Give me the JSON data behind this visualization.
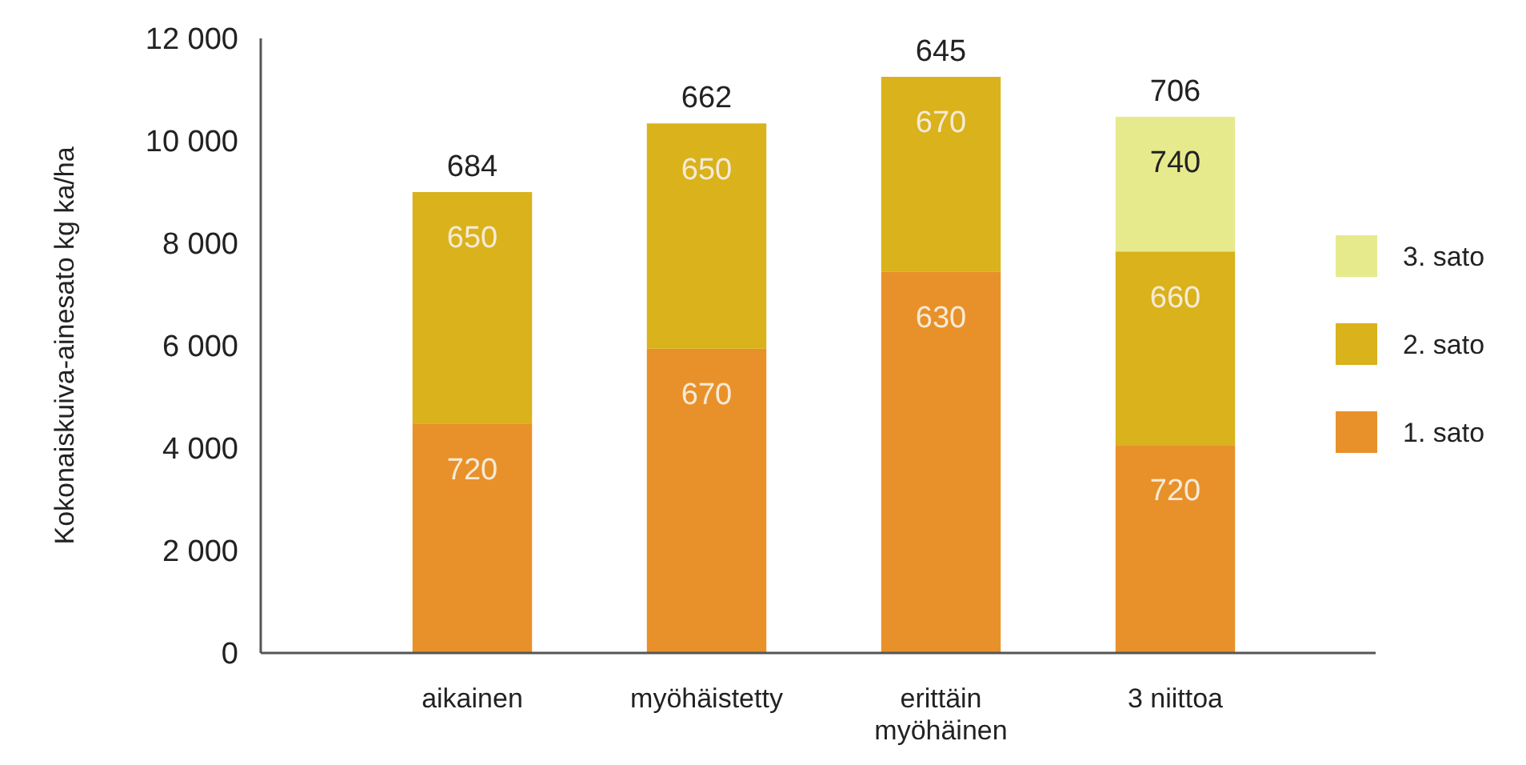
{
  "chart_data": {
    "type": "bar",
    "stacked": true,
    "ylabel": "Kokonaiskuiva-ainesato kg ka/ha",
    "categories": [
      "aikainen",
      "myöhäistetty",
      "erittäin myöhäinen",
      "3 niittoa"
    ],
    "series": [
      {
        "name": "1. sato",
        "color": "#e8912a",
        "values": [
          4470,
          5940,
          7440,
          4060
        ]
      },
      {
        "name": "2. sato",
        "color": "#d9b21c",
        "values": [
          4530,
          4400,
          3810,
          3780
        ]
      },
      {
        "name": "3. sato",
        "color": "#e6ea8c",
        "values": [
          null,
          null,
          null,
          2630
        ]
      }
    ],
    "annotations": [
      {
        "text": "720",
        "x": "aikainen",
        "y": 4470
      },
      {
        "text": "670",
        "x": "myöhäistetty",
        "y": 5940
      },
      {
        "text": "630",
        "x": "erittäin myöhäinen",
        "y": 7440
      },
      {
        "text": "720",
        "x": "3 niittoa",
        "y": 4060
      },
      {
        "text": "650",
        "x": "aikainen",
        "y": 9000
      },
      {
        "text": "650",
        "x": "myöhäistetty",
        "y": 10340
      },
      {
        "text": "670",
        "x": "erittäin myöhäinen",
        "y": 11250
      },
      {
        "text": "660",
        "x": "3 niittoa",
        "y": 7840
      },
      {
        "text": "740",
        "x": "3 niittoa",
        "y": 10470
      },
      {
        "text": "684",
        "x": "aikainen",
        "y": 9000
      },
      {
        "text": "662",
        "x": "myöhäistetty",
        "y": 10340
      },
      {
        "text": "645",
        "x": "erittäin myöhäinen",
        "y": 11250
      },
      {
        "text": "706",
        "x": "3 niittoa",
        "y": 10470
      }
    ],
    "ylim": [
      0,
      12000
    ],
    "yticks": [
      {
        "value": 0,
        "label": "0"
      },
      {
        "value": 2000,
        "label": "2 000"
      },
      {
        "value": 4000,
        "label": "4 000"
      },
      {
        "value": 6000,
        "label": "6 000"
      },
      {
        "value": 8000,
        "label": "8 000"
      },
      {
        "value": 10000,
        "label": "10 000"
      },
      {
        "value": 12000,
        "label": "12 000"
      }
    ],
    "grid": false,
    "legend": "right"
  }
}
